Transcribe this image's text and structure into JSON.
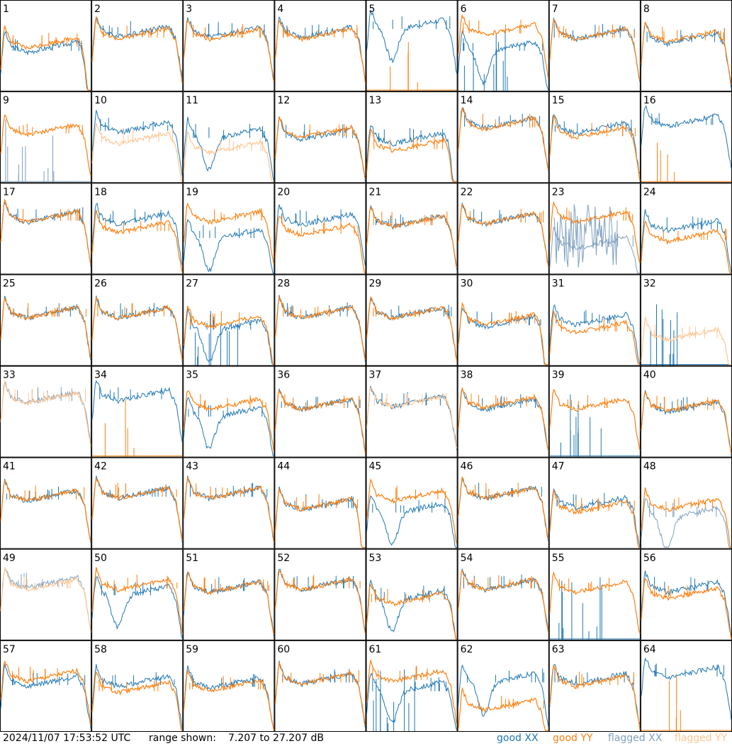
{
  "footer": {
    "timestamp": "2024/11/07 17:53:52 UTC",
    "range_label": "range shown:",
    "range_value": "7.207 to 27.207 dB"
  },
  "legend": {
    "good_xx": "good XX",
    "good_yy": "good YY",
    "flagged_xx": "flagged XX",
    "flagged_yy": "flagged YY"
  },
  "colors": {
    "good_xx": "#1f77b4",
    "good_yy": "#ff7f0e",
    "flagged_xx": "#7f9fbf",
    "flagged_yy": "#ffc58f",
    "panel_border": "#000000"
  },
  "chart_data": {
    "type": "line",
    "layout": "8x8 small multiples",
    "y_unit": "dB",
    "ylim": [
      7.207,
      27.207
    ],
    "panels": [
      {
        "label": "1",
        "xx": "good",
        "yy": "good",
        "shape": "droop",
        "xx_level": 0.45,
        "yy_level": 0.5,
        "spur": "none"
      },
      {
        "label": "2",
        "xx": "good",
        "yy": "good",
        "shape": "normal",
        "xx_level": 0.63,
        "yy_level": 0.6,
        "spur": "none"
      },
      {
        "label": "3",
        "xx": "good",
        "yy": "good",
        "shape": "normal",
        "xx_level": 0.62,
        "yy_level": 0.6,
        "spur": "none"
      },
      {
        "label": "4",
        "xx": "good",
        "yy": "good",
        "shape": "normal",
        "xx_level": 0.62,
        "yy_level": 0.6,
        "spur": "none"
      },
      {
        "label": "5",
        "xx": "good",
        "yy": "good",
        "shape": "dip",
        "xx_level": 0.7,
        "yy_level": 0.0,
        "spur": "yy_low"
      },
      {
        "label": "6",
        "xx": "good",
        "yy": "good",
        "shape": "dip",
        "xx_level": 0.45,
        "yy_level": 0.65,
        "spur": "xx"
      },
      {
        "label": "7",
        "xx": "good",
        "yy": "good",
        "shape": "normal",
        "xx_level": 0.6,
        "yy_level": 0.6,
        "spur": "none"
      },
      {
        "label": "8",
        "xx": "good",
        "yy": "good",
        "shape": "normal",
        "xx_level": 0.55,
        "yy_level": 0.57,
        "spur": "none"
      },
      {
        "label": "9",
        "xx": "flagged",
        "yy": "good",
        "shape": "normal",
        "xx_level": 0.0,
        "yy_level": 0.55,
        "spur": "xx_low"
      },
      {
        "label": "10",
        "xx": "good",
        "yy": "flagged",
        "shape": "normal",
        "xx_level": 0.58,
        "yy_level": 0.45,
        "spur": "none"
      },
      {
        "label": "11",
        "xx": "good",
        "yy": "flagged",
        "shape": "dip",
        "xx_level": 0.5,
        "yy_level": 0.35,
        "spur": "none"
      },
      {
        "label": "12",
        "xx": "good",
        "yy": "good",
        "shape": "normal",
        "xx_level": 0.5,
        "yy_level": 0.52,
        "spur": "none"
      },
      {
        "label": "13",
        "xx": "good",
        "yy": "good",
        "shape": "droop",
        "xx_level": 0.45,
        "yy_level": 0.37,
        "spur": "none"
      },
      {
        "label": "14",
        "xx": "good",
        "yy": "good",
        "shape": "normal",
        "xx_level": 0.63,
        "yy_level": 0.62,
        "spur": "none"
      },
      {
        "label": "15",
        "xx": "good",
        "yy": "good",
        "shape": "normal",
        "xx_level": 0.57,
        "yy_level": 0.52,
        "spur": "none"
      },
      {
        "label": "16",
        "xx": "good",
        "yy": "good",
        "shape": "normal",
        "xx_level": 0.65,
        "yy_level": 0.0,
        "spur": "yy_low"
      },
      {
        "label": "17",
        "xx": "good",
        "yy": "good",
        "shape": "normal",
        "xx_level": 0.6,
        "yy_level": 0.6,
        "spur": "none"
      },
      {
        "label": "18",
        "xx": "good",
        "yy": "good",
        "shape": "normal",
        "xx_level": 0.58,
        "yy_level": 0.48,
        "spur": "none"
      },
      {
        "label": "19",
        "xx": "good",
        "yy": "good",
        "shape": "dip",
        "xx_level": 0.4,
        "yy_level": 0.6,
        "spur": "none"
      },
      {
        "label": "20",
        "xx": "good",
        "yy": "good",
        "shape": "normal",
        "xx_level": 0.57,
        "yy_level": 0.45,
        "spur": "none"
      },
      {
        "label": "21",
        "xx": "good",
        "yy": "good",
        "shape": "normal",
        "xx_level": 0.55,
        "yy_level": 0.55,
        "spur": "none"
      },
      {
        "label": "22",
        "xx": "good",
        "yy": "good",
        "shape": "normal",
        "xx_level": 0.58,
        "yy_level": 0.58,
        "spur": "none"
      },
      {
        "label": "23",
        "xx": "flagged",
        "yy": "good",
        "shape": "normal",
        "xx_level": 0.3,
        "yy_level": 0.6,
        "spur": "xx_noise"
      },
      {
        "label": "24",
        "xx": "good",
        "yy": "good",
        "shape": "normal",
        "xx_level": 0.5,
        "yy_level": 0.38,
        "spur": "none"
      },
      {
        "label": "25",
        "xx": "good",
        "yy": "good",
        "shape": "normal",
        "xx_level": 0.55,
        "yy_level": 0.55,
        "spur": "none"
      },
      {
        "label": "26",
        "xx": "good",
        "yy": "good",
        "shape": "normal",
        "xx_level": 0.55,
        "yy_level": 0.55,
        "spur": "none"
      },
      {
        "label": "27",
        "xx": "good",
        "yy": "good",
        "shape": "dip",
        "xx_level": 0.4,
        "yy_level": 0.45,
        "spur": "xx"
      },
      {
        "label": "28",
        "xx": "good",
        "yy": "good",
        "shape": "normal",
        "xx_level": 0.55,
        "yy_level": 0.55,
        "spur": "none"
      },
      {
        "label": "29",
        "xx": "good",
        "yy": "good",
        "shape": "normal",
        "xx_level": 0.55,
        "yy_level": 0.55,
        "spur": "none"
      },
      {
        "label": "30",
        "xx": "good",
        "yy": "good",
        "shape": "droop",
        "xx_level": 0.45,
        "yy_level": 0.47,
        "spur": "none"
      },
      {
        "label": "31",
        "xx": "good",
        "yy": "good",
        "shape": "normal",
        "xx_level": 0.47,
        "yy_level": 0.38,
        "spur": "none"
      },
      {
        "label": "32",
        "xx": "good",
        "yy": "flagged",
        "shape": "normal",
        "xx_level": 0.0,
        "yy_level": 0.3,
        "spur": "xx_low"
      },
      {
        "label": "33",
        "xx": "flagged",
        "yy": "flagged",
        "shape": "normal",
        "xx_level": 0.63,
        "yy_level": 0.62,
        "spur": "none"
      },
      {
        "label": "34",
        "xx": "good",
        "yy": "good",
        "shape": "normal",
        "xx_level": 0.65,
        "yy_level": 0.0,
        "spur": "yy_low"
      },
      {
        "label": "35",
        "xx": "good",
        "yy": "good",
        "shape": "dip",
        "xx_level": 0.45,
        "yy_level": 0.55,
        "spur": "none"
      },
      {
        "label": "36",
        "xx": "good",
        "yy": "good",
        "shape": "normal",
        "xx_level": 0.55,
        "yy_level": 0.55,
        "spur": "none"
      },
      {
        "label": "37",
        "xx": "good",
        "yy": "flagged",
        "shape": "normal",
        "xx_level": 0.58,
        "yy_level": 0.58,
        "spur": "none"
      },
      {
        "label": "38",
        "xx": "good",
        "yy": "good",
        "shape": "normal",
        "xx_level": 0.55,
        "yy_level": 0.57,
        "spur": "none"
      },
      {
        "label": "39",
        "xx": "good",
        "yy": "good",
        "shape": "normal",
        "xx_level": 0.0,
        "yy_level": 0.55,
        "spur": "xx_low"
      },
      {
        "label": "40",
        "xx": "good",
        "yy": "good",
        "shape": "normal",
        "xx_level": 0.52,
        "yy_level": 0.53,
        "spur": "none"
      },
      {
        "label": "41",
        "xx": "good",
        "yy": "good",
        "shape": "normal",
        "xx_level": 0.55,
        "yy_level": 0.55,
        "spur": "none"
      },
      {
        "label": "42",
        "xx": "good",
        "yy": "good",
        "shape": "normal",
        "xx_level": 0.58,
        "yy_level": 0.58,
        "spur": "none"
      },
      {
        "label": "43",
        "xx": "good",
        "yy": "good",
        "shape": "normal",
        "xx_level": 0.58,
        "yy_level": 0.58,
        "spur": "none"
      },
      {
        "label": "44",
        "xx": "good",
        "yy": "good",
        "shape": "droop",
        "xx_level": 0.45,
        "yy_level": 0.45,
        "spur": "none"
      },
      {
        "label": "45",
        "xx": "good",
        "yy": "good",
        "shape": "dip",
        "xx_level": 0.4,
        "yy_level": 0.55,
        "spur": "none"
      },
      {
        "label": "46",
        "xx": "good",
        "yy": "good",
        "shape": "normal",
        "xx_level": 0.58,
        "yy_level": 0.58,
        "spur": "none"
      },
      {
        "label": "47",
        "xx": "good",
        "yy": "good",
        "shape": "normal",
        "xx_level": 0.47,
        "yy_level": 0.42,
        "spur": "none"
      },
      {
        "label": "48",
        "xx": "flagged",
        "yy": "good",
        "shape": "dip",
        "xx_level": 0.35,
        "yy_level": 0.45,
        "spur": "none"
      },
      {
        "label": "49",
        "xx": "flagged",
        "yy": "flagged",
        "shape": "normal",
        "xx_level": 0.6,
        "yy_level": 0.58,
        "spur": "none"
      },
      {
        "label": "50",
        "xx": "good",
        "yy": "good",
        "shape": "dip",
        "xx_level": 0.5,
        "yy_level": 0.58,
        "spur": "none"
      },
      {
        "label": "51",
        "xx": "good",
        "yy": "good",
        "shape": "normal",
        "xx_level": 0.55,
        "yy_level": 0.55,
        "spur": "none"
      },
      {
        "label": "52",
        "xx": "good",
        "yy": "good",
        "shape": "normal",
        "xx_level": 0.58,
        "yy_level": 0.58,
        "spur": "none"
      },
      {
        "label": "53",
        "xx": "good",
        "yy": "good",
        "shape": "dip",
        "xx_level": 0.45,
        "yy_level": 0.42,
        "spur": "none"
      },
      {
        "label": "54",
        "xx": "good",
        "yy": "good",
        "shape": "normal",
        "xx_level": 0.58,
        "yy_level": 0.58,
        "spur": "none"
      },
      {
        "label": "55",
        "xx": "good",
        "yy": "good",
        "shape": "normal",
        "xx_level": 0.0,
        "yy_level": 0.55,
        "spur": "xx_low"
      },
      {
        "label": "56",
        "xx": "good",
        "yy": "good",
        "shape": "normal",
        "xx_level": 0.55,
        "yy_level": 0.48,
        "spur": "none"
      },
      {
        "label": "57",
        "xx": "good",
        "yy": "good",
        "shape": "normal",
        "xx_level": 0.52,
        "yy_level": 0.58,
        "spur": "none"
      },
      {
        "label": "58",
        "xx": "good",
        "yy": "good",
        "shape": "normal",
        "xx_level": 0.52,
        "yy_level": 0.45,
        "spur": "none"
      },
      {
        "label": "59",
        "xx": "good",
        "yy": "good",
        "shape": "normal",
        "xx_level": 0.5,
        "yy_level": 0.47,
        "spur": "none"
      },
      {
        "label": "60",
        "xx": "good",
        "yy": "good",
        "shape": "normal",
        "xx_level": 0.55,
        "yy_level": 0.55,
        "spur": "none"
      },
      {
        "label": "61",
        "xx": "good",
        "yy": "good",
        "shape": "dip",
        "xx_level": 0.45,
        "yy_level": 0.58,
        "spur": "xx"
      },
      {
        "label": "62",
        "xx": "good",
        "yy": "good",
        "shape": "dip",
        "xx_level": 0.55,
        "yy_level": 0.25,
        "spur": "none"
      },
      {
        "label": "63",
        "xx": "good",
        "yy": "good",
        "shape": "normal",
        "xx_level": 0.55,
        "yy_level": 0.52,
        "spur": "none"
      },
      {
        "label": "64",
        "xx": "good",
        "yy": "good",
        "shape": "normal",
        "xx_level": 0.62,
        "yy_level": 0.0,
        "spur": "yy_low"
      }
    ]
  }
}
